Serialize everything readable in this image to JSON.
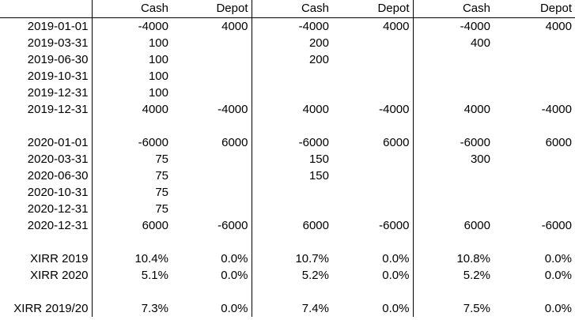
{
  "app": {
    "description": "Spreadsheet region comparing XIRR of three cash-flow scenarios"
  },
  "colors": {
    "background": "#ffffff",
    "text": "#000000",
    "gridline": "#000000"
  },
  "table": {
    "header": [
      "",
      "Cash",
      "Depot",
      "Cash",
      "Depot",
      "Cash",
      "Depot"
    ],
    "rows": [
      {
        "label": "2019-01-01",
        "cells": [
          "-4000",
          "4000",
          "-4000",
          "4000",
          "-4000",
          "4000"
        ]
      },
      {
        "label": "2019-03-31",
        "cells": [
          "100",
          "",
          "200",
          "",
          "400",
          ""
        ]
      },
      {
        "label": "2019-06-30",
        "cells": [
          "100",
          "",
          "200",
          "",
          "",
          ""
        ]
      },
      {
        "label": "2019-10-31",
        "cells": [
          "100",
          "",
          "",
          "",
          "",
          ""
        ]
      },
      {
        "label": "2019-12-31",
        "cells": [
          "100",
          "",
          "",
          "",
          "",
          ""
        ]
      },
      {
        "label": "2019-12-31",
        "cells": [
          "4000",
          "-4000",
          "4000",
          "-4000",
          "4000",
          "-4000"
        ]
      },
      {
        "label": "",
        "cells": [
          "",
          "",
          "",
          "",
          "",
          ""
        ]
      },
      {
        "label": "2020-01-01",
        "cells": [
          "-6000",
          "6000",
          "-6000",
          "6000",
          "-6000",
          "6000"
        ]
      },
      {
        "label": "2020-03-31",
        "cells": [
          "75",
          "",
          "150",
          "",
          "300",
          ""
        ]
      },
      {
        "label": "2020-06-30",
        "cells": [
          "75",
          "",
          "150",
          "",
          "",
          ""
        ]
      },
      {
        "label": "2020-10-31",
        "cells": [
          "75",
          "",
          "",
          "",
          "",
          ""
        ]
      },
      {
        "label": "2020-12-31",
        "cells": [
          "75",
          "",
          "",
          "",
          "",
          ""
        ]
      },
      {
        "label": "2020-12-31",
        "cells": [
          "6000",
          "-6000",
          "6000",
          "-6000",
          "6000",
          "-6000"
        ]
      },
      {
        "label": "",
        "cells": [
          "",
          "",
          "",
          "",
          "",
          ""
        ]
      },
      {
        "label": "XIRR 2019",
        "cells": [
          "10.4%",
          "0.0%",
          "10.7%",
          "0.0%",
          "10.8%",
          "0.0%"
        ]
      },
      {
        "label": "XIRR 2020",
        "cells": [
          "5.1%",
          "0.0%",
          "5.2%",
          "0.0%",
          "5.2%",
          "0.0%"
        ]
      },
      {
        "label": "",
        "cells": [
          "",
          "",
          "",
          "",
          "",
          ""
        ]
      },
      {
        "label": "XIRR 2019/20",
        "cells": [
          "7.3%",
          "0.0%",
          "7.4%",
          "0.0%",
          "7.5%",
          "0.0%"
        ]
      }
    ]
  }
}
